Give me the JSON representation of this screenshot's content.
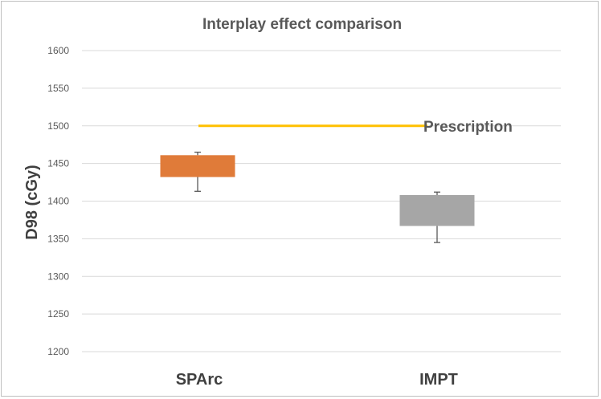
{
  "chart_data": {
    "type": "box",
    "title": "Interplay effect comparison",
    "xlabel": "",
    "ylabel": "D98 (cGy)",
    "ylim": [
      1200,
      1600
    ],
    "yticks": [
      1200,
      1250,
      1300,
      1350,
      1400,
      1450,
      1500,
      1550,
      1600
    ],
    "grid": true,
    "categories": [
      "SPArc",
      "IMPT"
    ],
    "boxes": [
      {
        "name": "SPArc",
        "whisker_low": 1413,
        "q1": 1432,
        "q3": 1461,
        "whisker_high": 1465,
        "color": "#e07b39"
      },
      {
        "name": "IMPT",
        "whisker_low": 1345,
        "q1": 1367,
        "q3": 1408,
        "whisker_high": 1412,
        "color": "#a6a6a6"
      }
    ],
    "reference_line": {
      "label": "Prescription",
      "value": 1500,
      "color": "#ffc000"
    }
  }
}
